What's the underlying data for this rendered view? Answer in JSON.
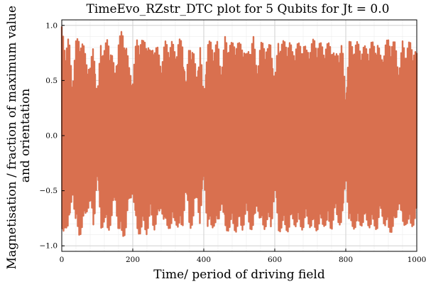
{
  "chart_data": {
    "type": "line",
    "title": "TimeEvo_RZstr_DTC plot for 5 Qubits for Jt = 0.0",
    "xlabel": "Time/ period of driving field",
    "ylabel_lines": [
      "Magnetisation / fraction of maximum value",
      "and orientation"
    ],
    "xlim": [
      0,
      1000
    ],
    "ylim": [
      -1.05,
      1.05
    ],
    "xticks": [
      0,
      200,
      400,
      600,
      800,
      1000
    ],
    "xtick_labels": [
      "0",
      "200",
      "400",
      "600",
      "800",
      "1000"
    ],
    "yticks": [
      -1.0,
      -0.5,
      0.0,
      0.5,
      1.0
    ],
    "ytick_labels": [
      "−1.0",
      "−0.5",
      "0.0",
      "0.5",
      "1.0"
    ],
    "grid": true,
    "legend": "none",
    "series": [
      {
        "color": "#d9704f",
        "x_start": 0,
        "x_end": 1000,
        "step": 1,
        "alternating_sign": true,
        "envelope": {
          "x": [
            0,
            10,
            20,
            30,
            40,
            50,
            60,
            70,
            80,
            90,
            100,
            110,
            120,
            130,
            140,
            150,
            160,
            170,
            180,
            190,
            200,
            210,
            220,
            230,
            240,
            250,
            260,
            270,
            280,
            290,
            300,
            310,
            320,
            330,
            340,
            350,
            360,
            370,
            380,
            390,
            400,
            410,
            420,
            430,
            440,
            450,
            460,
            470,
            480,
            490,
            500,
            510,
            520,
            530,
            540,
            550,
            560,
            570,
            580,
            590,
            600,
            610,
            620,
            630,
            640,
            650,
            660,
            670,
            680,
            690,
            700,
            710,
            720,
            730,
            740,
            750,
            760,
            770,
            780,
            790,
            800,
            810,
            820,
            830,
            840,
            850,
            860,
            870,
            880,
            890,
            900,
            910,
            920,
            930,
            940,
            950,
            960,
            970,
            980,
            990,
            1000
          ],
          "amp": [
            0.99,
            0.82,
            0.9,
            0.5,
            0.86,
            0.92,
            0.84,
            0.7,
            0.62,
            0.86,
            0.35,
            0.86,
            0.8,
            0.9,
            0.78,
            0.58,
            0.88,
            0.96,
            0.88,
            0.62,
            0.52,
            0.88,
            0.9,
            0.86,
            0.9,
            0.75,
            0.86,
            0.8,
            0.65,
            0.86,
            0.84,
            0.86,
            0.78,
            0.88,
            0.86,
            0.5,
            0.86,
            0.8,
            0.55,
            0.84,
            0.35,
            0.85,
            0.86,
            0.82,
            0.86,
            0.6,
            0.9,
            0.86,
            0.84,
            0.88,
            0.84,
            0.86,
            0.72,
            0.84,
            0.9,
            0.62,
            0.84,
            0.86,
            0.8,
            0.86,
            0.5,
            0.88,
            0.86,
            0.86,
            0.88,
            0.78,
            0.84,
            0.84,
            0.86,
            0.78,
            0.84,
            0.88,
            0.86,
            0.84,
            0.82,
            0.84,
            0.86,
            0.72,
            0.8,
            0.84,
            0.36,
            0.86,
            0.84,
            0.86,
            0.82,
            0.82,
            0.8,
            0.86,
            0.84,
            0.86,
            0.7,
            0.84,
            0.88,
            0.88,
            0.84,
            0.6,
            0.86,
            0.8,
            0.86,
            0.82,
            0.75
          ]
        }
      }
    ]
  }
}
